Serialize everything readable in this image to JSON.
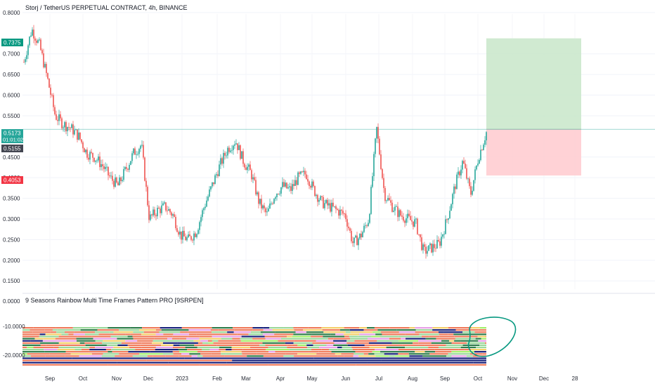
{
  "header": {
    "title": "Storj / TetherUS PERPETUAL CONTRACT, 4h, BINANCE"
  },
  "indicator": {
    "title": "9 Seasons Rainbow Multi Time Frames Pattern PRO [9SRPEN]",
    "y_ticks": [
      "0.0000",
      "-10.0000",
      "-20.0000"
    ],
    "band_colors": [
      "#f07a5a",
      "#9ad89a",
      "#1a237e",
      "#2e7d4a",
      "#e8a0e8",
      "#f5d06a",
      "#a3f06a"
    ]
  },
  "colors": {
    "up": "#26a69a",
    "down": "#ef5350",
    "target_zone": "#c8e6c9",
    "stop_zone": "#ffcdd2",
    "price_line": "#26a69a",
    "target_tag": "#089981",
    "stop_tag": "#f23645",
    "dark_tag": "#434651",
    "annotation": "#089981"
  },
  "price_tags": {
    "target": "0.7375",
    "current": "0.5173",
    "countdown": "01:01:02",
    "prev": "0.5155",
    "stop": "0.4053"
  },
  "chart_data": {
    "type": "line",
    "title": "Storj / TetherUS PERPETUAL CONTRACT, 4h, BINANCE",
    "xlabel": "",
    "ylabel": "",
    "ylim": [
      0.13,
      0.81
    ],
    "y_ticks": [
      0.8,
      0.7,
      0.65,
      0.6,
      0.55,
      0.45,
      0.4,
      0.35,
      0.3,
      0.25,
      0.2,
      0.15
    ],
    "x_ticks": [
      "Sep",
      "Oct",
      "Nov",
      "Dec",
      "2023",
      "Feb",
      "Mar",
      "Apr",
      "May",
      "Jun",
      "Jul",
      "Aug",
      "Sep",
      "Oct",
      "Nov",
      "Dec",
      "28"
    ],
    "grid": true,
    "series": [
      {
        "values": [
          0.68,
          0.76,
          0.72,
          0.64,
          0.55,
          0.53,
          0.52,
          0.5,
          0.46,
          0.45,
          0.43,
          0.4,
          0.38,
          0.42,
          0.46,
          0.48,
          0.3,
          0.32,
          0.33,
          0.31,
          0.26,
          0.25,
          0.27,
          0.33,
          0.38,
          0.43,
          0.47,
          0.49,
          0.44,
          0.41,
          0.34,
          0.31,
          0.36,
          0.38,
          0.37,
          0.4,
          0.41,
          0.37,
          0.34,
          0.33,
          0.32,
          0.31,
          0.24,
          0.26,
          0.3,
          0.52,
          0.36,
          0.33,
          0.31,
          0.3,
          0.29,
          0.22,
          0.23,
          0.24,
          0.3,
          0.38,
          0.44,
          0.36,
          0.45,
          0.51
        ]
      }
    ],
    "annotations": {
      "target_price": 0.7375,
      "current_price": 0.5173,
      "stop_price": 0.4053
    }
  }
}
